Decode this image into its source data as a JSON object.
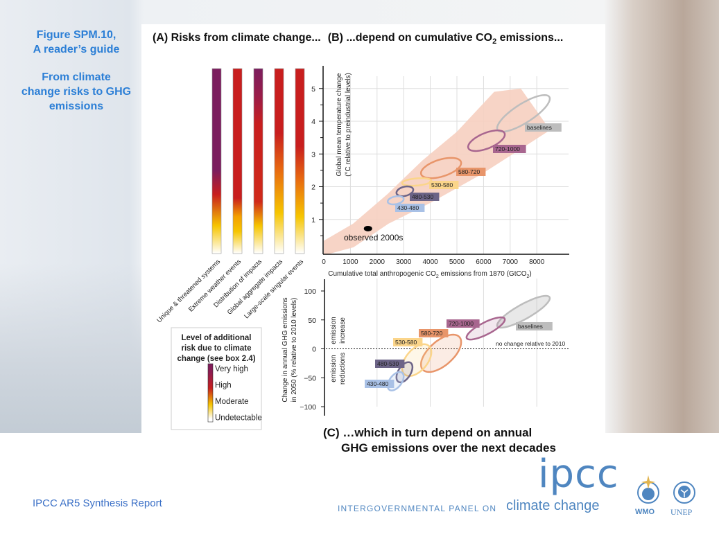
{
  "sidebar": {
    "fig_line1": "Figure SPM.10,",
    "fig_line2": "A reader’s guide",
    "sub_line1": "From climate",
    "sub_line2": "change risks to GHG",
    "sub_line3": "emissions"
  },
  "titles": {
    "a": "(A) Risks from climate change...",
    "b_pre": "(B) ...depend on cumulative CO",
    "b_sub": "2",
    "b_post": " emissions...",
    "c_line1": "(C) …which in turn depend on annual",
    "c_line2": "GHG emissions over the next decades"
  },
  "footer": {
    "report": "IPCC AR5 Synthesis Report",
    "ipcc": "ipcc",
    "panel_text": "INTERGOVERNMENTAL PANEL ON",
    "climate_change": "climate change",
    "wmo": "WMO",
    "unep": "UNEP"
  },
  "chart_data": [
    {
      "type": "heatmap",
      "name": "Risk bars (A)",
      "categories": [
        "Unique & threatened systems",
        "Extreme weather events",
        "Distribution of impacts",
        "Global aggregate impacts",
        "Large-scale singular events"
      ],
      "legend": {
        "title_lines": [
          "Level of additional",
          "risk due to climate",
          "change (see box 2.4)"
        ],
        "levels": [
          "Very high",
          "High",
          "Moderate",
          "Undetectable"
        ]
      },
      "colors": {
        "very_high": "#7b1d5e",
        "high": "#c81e1e",
        "moderate": "#f6c500",
        "undetectable": "#ffffff"
      },
      "stops": [
        [
          [
            "#7b1d5e",
            0
          ],
          [
            "#7b1d5e",
            0.55
          ],
          [
            "#c81e1e",
            0.68
          ],
          [
            "#f6c500",
            0.85
          ],
          [
            "#ffffff",
            1
          ]
        ],
        [
          [
            "#c81e1e",
            0
          ],
          [
            "#c81e1e",
            0.7
          ],
          [
            "#f4a000",
            0.8
          ],
          [
            "#f6c500",
            0.88
          ],
          [
            "#ffffff",
            1
          ]
        ],
        [
          [
            "#7b1d5e",
            0
          ],
          [
            "#9a1c48",
            0.15
          ],
          [
            "#c81e1e",
            0.3
          ],
          [
            "#d02a1a",
            0.72
          ],
          [
            "#f6c500",
            0.85
          ],
          [
            "#ffffff",
            1
          ]
        ],
        [
          [
            "#c81e1e",
            0
          ],
          [
            "#c81e1e",
            0.35
          ],
          [
            "#e86a10",
            0.55
          ],
          [
            "#f6c500",
            0.78
          ],
          [
            "#ffffff",
            1
          ]
        ],
        [
          [
            "#c81e1e",
            0
          ],
          [
            "#c81e1e",
            0.42
          ],
          [
            "#e86a10",
            0.6
          ],
          [
            "#f6c500",
            0.8
          ],
          [
            "#ffffff",
            1
          ]
        ]
      ]
    },
    {
      "type": "scatter",
      "name": "Temperature vs cumulative CO2 (B)",
      "xlabel_pre": "Cumulative total anthropogenic CO",
      "xlabel_sub": "2",
      "xlabel_mid": " emissions from 1870 (GtCO",
      "xlabel_sub2": "2",
      "xlabel_post": ")",
      "ylabel1": "Global mean temperature change",
      "ylabel2": "(°C relative to preindustrial levels)",
      "xlim": [
        0,
        9000
      ],
      "ylim": [
        0,
        5.5
      ],
      "xticks": [
        0,
        1000,
        2000,
        3000,
        4000,
        5000,
        6000,
        7000,
        8000
      ],
      "yticks": [
        1,
        2,
        3,
        4,
        5
      ],
      "grid": true,
      "plume": [
        [
          0,
          0.35
        ],
        [
          1100,
          0.87
        ],
        [
          2400,
          1.78
        ],
        [
          3700,
          2.8
        ],
        [
          5000,
          3.68
        ],
        [
          6400,
          4.9
        ],
        [
          7400,
          5.0
        ],
        [
          8500,
          3.73
        ],
        [
          5900,
          2.37
        ],
        [
          3990,
          1.5
        ],
        [
          2430,
          0.87
        ],
        [
          1120,
          0.15
        ],
        [
          150,
          -0.1
        ],
        [
          0,
          -0.1
        ]
      ],
      "observed": {
        "label": "observed 2000s",
        "x": 1660,
        "y": 0.72
      },
      "scenarios": [
        {
          "label": "baselines",
          "color": "#bdbdbd",
          "x": [
            6510,
            8490
          ],
          "y": [
            3.68,
            4.8
          ]
        },
        {
          "label": "720-1000",
          "color": "#a8668f",
          "x": [
            5420,
            6800
          ],
          "y": [
            3.09,
            3.72
          ]
        },
        {
          "label": "580-720",
          "color": "#e8956a",
          "x": [
            3650,
            5160
          ],
          "y": [
            2.26,
            2.88
          ]
        },
        {
          "label": "530-580",
          "color": "#fbd58a",
          "x": [
            2940,
            4040
          ],
          "y": [
            2.03,
            2.26
          ]
        },
        {
          "label": "480-530",
          "color": "#6c6487",
          "x": [
            2730,
            3360
          ],
          "y": [
            1.71,
            2.01
          ]
        },
        {
          "label": "430-480",
          "color": "#a9c1e6",
          "x": [
            2400,
            3000
          ],
          "y": [
            1.46,
            1.71
          ]
        }
      ]
    },
    {
      "type": "scatter",
      "name": "Change in annual GHG emissions in 2050 (C)",
      "ylabel1": "Change in annual GHG emissions",
      "ylabel2": "in 2050 (% relative to 2010 levels)",
      "ylim": [
        -100,
        100
      ],
      "yticks": [
        100,
        50,
        0,
        -50,
        -100
      ],
      "ytick_labels": [
        "100",
        "50",
        "0",
        "−50",
        "−100"
      ],
      "zero_line_label": "no change relative to 2010",
      "increase_label": [
        "emission",
        "increase"
      ],
      "reduction_label": [
        "emission",
        "reductions"
      ],
      "scenarios": [
        {
          "label": "baselines",
          "color": "#bdbdbd",
          "x": [
            6510,
            8490
          ],
          "y": [
            36.5,
            91.6
          ]
        },
        {
          "label": "720-1000",
          "color": "#a8668f",
          "x": [
            5360,
            6800
          ],
          "y": [
            16,
            54.5
          ]
        },
        {
          "label": "580-720",
          "color": "#e8956a",
          "x": [
            3650,
            5160
          ],
          "y": [
            -40,
            24.5
          ]
        },
        {
          "label": "530-580",
          "color": "#fbd58a",
          "x": [
            2940,
            4040
          ],
          "y": [
            -47,
            8
          ]
        },
        {
          "label": "480-530",
          "color": "#6c6487",
          "x": [
            2730,
            3330
          ],
          "y": [
            -58,
            -23
          ]
        },
        {
          "label": "430-480",
          "color": "#a9c1e6",
          "x": [
            2400,
            3000
          ],
          "y": [
            -72,
            -40
          ]
        }
      ]
    }
  ]
}
